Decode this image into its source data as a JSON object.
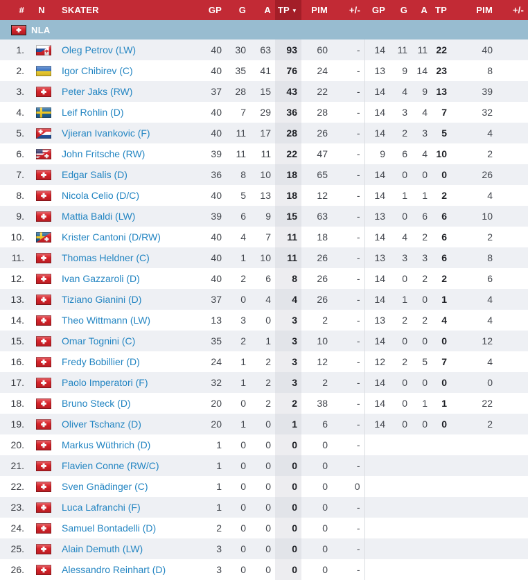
{
  "table": {
    "columns": [
      {
        "key": "rank",
        "label": "#"
      },
      {
        "key": "nat",
        "label": "N"
      },
      {
        "key": "skater",
        "label": "SKATER"
      },
      {
        "key": "gp-1",
        "label": "GP"
      },
      {
        "key": "g-1",
        "label": "G"
      },
      {
        "key": "a-1",
        "label": "A"
      },
      {
        "key": "tp-1",
        "label": "TP",
        "sorted": true
      },
      {
        "key": "pim-1",
        "label": "PIM"
      },
      {
        "key": "plusminus-1",
        "label": "+/-"
      },
      {
        "key": "gp-2",
        "label": "GP"
      },
      {
        "key": "g-2",
        "label": "G"
      },
      {
        "key": "a-2",
        "label": "A"
      },
      {
        "key": "tp-2",
        "label": "TP"
      },
      {
        "key": "pim-2",
        "label": "PIM"
      },
      {
        "key": "plusminus-2",
        "label": "+/-"
      }
    ],
    "sort_indicator": "▼"
  },
  "group": {
    "label": "NLA",
    "flag": "ch"
  },
  "players": [
    {
      "rank": "1.",
      "flag": "ru-ca",
      "name": "Oleg Petrov (LW)",
      "stats": [
        "40",
        "30",
        "63",
        "93",
        "60",
        "-",
        "14",
        "11",
        "11",
        "22",
        "40",
        ""
      ]
    },
    {
      "rank": "2.",
      "flag": "ua",
      "name": "Igor Chibirev (C)",
      "stats": [
        "40",
        "35",
        "41",
        "76",
        "24",
        "-",
        "13",
        "9",
        "14",
        "23",
        "8",
        ""
      ]
    },
    {
      "rank": "3.",
      "flag": "ch",
      "name": "Peter Jaks (RW)",
      "stats": [
        "37",
        "28",
        "15",
        "43",
        "22",
        "-",
        "14",
        "4",
        "9",
        "13",
        "39",
        ""
      ]
    },
    {
      "rank": "4.",
      "flag": "se",
      "name": "Leif Rohlin (D)",
      "stats": [
        "40",
        "7",
        "29",
        "36",
        "28",
        "-",
        "14",
        "3",
        "4",
        "7",
        "32",
        ""
      ]
    },
    {
      "rank": "5.",
      "flag": "ch-hr",
      "name": "Vjieran Ivankovic (F)",
      "stats": [
        "40",
        "11",
        "17",
        "28",
        "26",
        "-",
        "14",
        "2",
        "3",
        "5",
        "4",
        ""
      ]
    },
    {
      "rank": "6.",
      "flag": "us-ch",
      "name": "John Fritsche (RW)",
      "stats": [
        "39",
        "11",
        "11",
        "22",
        "47",
        "-",
        "9",
        "6",
        "4",
        "10",
        "2",
        ""
      ]
    },
    {
      "rank": "7.",
      "flag": "ch",
      "name": "Edgar Salis (D)",
      "stats": [
        "36",
        "8",
        "10",
        "18",
        "65",
        "-",
        "14",
        "0",
        "0",
        "0",
        "26",
        ""
      ]
    },
    {
      "rank": "8.",
      "flag": "ch",
      "name": "Nicola Celio (D/C)",
      "stats": [
        "40",
        "5",
        "13",
        "18",
        "12",
        "-",
        "14",
        "1",
        "1",
        "2",
        "4",
        ""
      ]
    },
    {
      "rank": "9.",
      "flag": "ch",
      "name": "Mattia Baldi (LW)",
      "stats": [
        "39",
        "6",
        "9",
        "15",
        "63",
        "-",
        "13",
        "0",
        "6",
        "6",
        "10",
        ""
      ]
    },
    {
      "rank": "10.",
      "flag": "se-ch",
      "name": "Krister Cantoni (D/RW)",
      "stats": [
        "40",
        "4",
        "7",
        "11",
        "18",
        "-",
        "14",
        "4",
        "2",
        "6",
        "2",
        ""
      ]
    },
    {
      "rank": "11.",
      "flag": "ch",
      "name": "Thomas Heldner (C)",
      "stats": [
        "40",
        "1",
        "10",
        "11",
        "26",
        "-",
        "13",
        "3",
        "3",
        "6",
        "8",
        ""
      ]
    },
    {
      "rank": "12.",
      "flag": "ch",
      "name": "Ivan Gazzaroli (D)",
      "stats": [
        "40",
        "2",
        "6",
        "8",
        "26",
        "-",
        "14",
        "0",
        "2",
        "2",
        "6",
        ""
      ]
    },
    {
      "rank": "13.",
      "flag": "ch",
      "name": "Tiziano Gianini (D)",
      "stats": [
        "37",
        "0",
        "4",
        "4",
        "26",
        "-",
        "14",
        "1",
        "0",
        "1",
        "4",
        ""
      ]
    },
    {
      "rank": "14.",
      "flag": "ch",
      "name": "Theo Wittmann (LW)",
      "stats": [
        "13",
        "3",
        "0",
        "3",
        "2",
        "-",
        "13",
        "2",
        "2",
        "4",
        "4",
        ""
      ]
    },
    {
      "rank": "15.",
      "flag": "ch",
      "name": "Omar Tognini (C)",
      "stats": [
        "35",
        "2",
        "1",
        "3",
        "10",
        "-",
        "14",
        "0",
        "0",
        "0",
        "12",
        ""
      ]
    },
    {
      "rank": "16.",
      "flag": "ch",
      "name": "Fredy Bobillier (D)",
      "stats": [
        "24",
        "1",
        "2",
        "3",
        "12",
        "-",
        "12",
        "2",
        "5",
        "7",
        "4",
        ""
      ]
    },
    {
      "rank": "17.",
      "flag": "ch",
      "name": "Paolo Imperatori (F)",
      "stats": [
        "32",
        "1",
        "2",
        "3",
        "2",
        "-",
        "14",
        "0",
        "0",
        "0",
        "0",
        ""
      ]
    },
    {
      "rank": "18.",
      "flag": "ch",
      "name": "Bruno Steck (D)",
      "stats": [
        "20",
        "0",
        "2",
        "2",
        "38",
        "-",
        "14",
        "0",
        "1",
        "1",
        "22",
        ""
      ]
    },
    {
      "rank": "19.",
      "flag": "ch",
      "name": "Oliver Tschanz (D)",
      "stats": [
        "20",
        "1",
        "0",
        "1",
        "6",
        "-",
        "14",
        "0",
        "0",
        "0",
        "2",
        ""
      ]
    },
    {
      "rank": "20.",
      "flag": "ch",
      "name": "Markus Wüthrich (D)",
      "stats": [
        "1",
        "0",
        "0",
        "0",
        "0",
        "-",
        "",
        "",
        "",
        "",
        "",
        ""
      ]
    },
    {
      "rank": "21.",
      "flag": "ch",
      "name": "Flavien Conne (RW/C)",
      "stats": [
        "1",
        "0",
        "0",
        "0",
        "0",
        "-",
        "",
        "",
        "",
        "",
        "",
        ""
      ]
    },
    {
      "rank": "22.",
      "flag": "ch",
      "name": "Sven Gnädinger (C)",
      "stats": [
        "1",
        "0",
        "0",
        "0",
        "0",
        "0",
        "",
        "",
        "",
        "",
        "",
        ""
      ]
    },
    {
      "rank": "23.",
      "flag": "ch",
      "name": "Luca Lafranchi (F)",
      "stats": [
        "1",
        "0",
        "0",
        "0",
        "0",
        "-",
        "",
        "",
        "",
        "",
        "",
        ""
      ]
    },
    {
      "rank": "24.",
      "flag": "ch",
      "name": "Samuel Bontadelli (D)",
      "stats": [
        "2",
        "0",
        "0",
        "0",
        "0",
        "-",
        "",
        "",
        "",
        "",
        "",
        ""
      ]
    },
    {
      "rank": "25.",
      "flag": "ch",
      "name": "Alain Demuth (LW)",
      "stats": [
        "3",
        "0",
        "0",
        "0",
        "0",
        "-",
        "",
        "",
        "",
        "",
        "",
        ""
      ]
    },
    {
      "rank": "26.",
      "flag": "ch",
      "name": "Alessandro Reinhart (D)",
      "stats": [
        "3",
        "0",
        "0",
        "0",
        "0",
        "-",
        "",
        "",
        "",
        "",
        "",
        ""
      ]
    }
  ],
  "colors": {
    "header_bg": "#c22a35",
    "header_sorted_bg": "#a31e28",
    "group_bg": "#98bcd0",
    "row_odd": "#eef0f4",
    "row_even": "#ffffff",
    "band_odd": "#e2e4e9",
    "band_even": "#ededf0",
    "name_link": "#2385c2",
    "stat_text": "#42464d",
    "tp_text": "#1d1f24",
    "divider": "#d9dbe0"
  }
}
